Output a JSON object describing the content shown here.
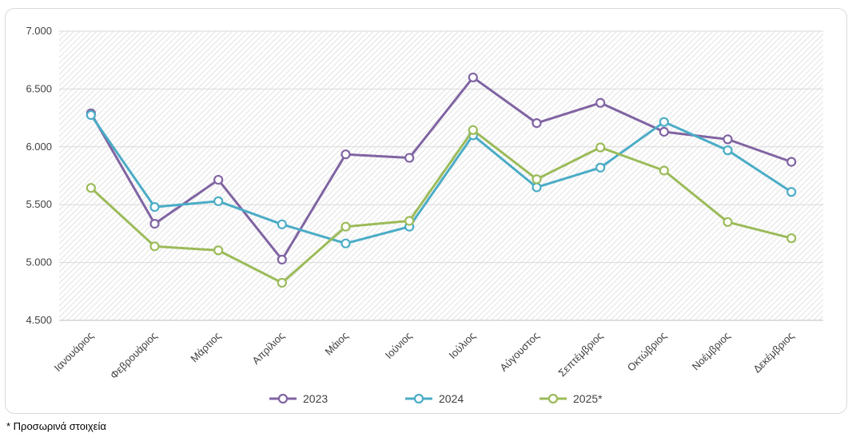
{
  "chart_data": {
    "type": "line",
    "categories": [
      "Ιανουάριος",
      "Φεβρουάριος",
      "Μάρτιος",
      "Απρίλιος",
      "Μάιος",
      "Ιούνιος",
      "Ιούλιος",
      "Αύγουστος",
      "Σεπτέμβριος",
      "Οκτώβριος",
      "Νοέμβριος",
      "Δεκέμβριος"
    ],
    "series": [
      {
        "name": "2023",
        "color": "#8064a2",
        "values": [
          6290,
          5335,
          5715,
          5025,
          5935,
          5905,
          6600,
          6205,
          6380,
          6130,
          6065,
          5870
        ]
      },
      {
        "name": "2024",
        "color": "#4bacc6",
        "values": [
          6275,
          5480,
          5530,
          5330,
          5165,
          5310,
          6100,
          5650,
          5820,
          6215,
          5970,
          5610
        ]
      },
      {
        "name": "2025*",
        "color": "#9bbb59",
        "values": [
          5645,
          5140,
          5105,
          4825,
          5310,
          5360,
          6145,
          5720,
          5995,
          5795,
          5350,
          5210
        ]
      }
    ],
    "ylim": [
      4500,
      7000
    ],
    "yticks": [
      4500,
      5000,
      5500,
      6000,
      6500,
      7000
    ],
    "ytick_labels": [
      "4.500",
      "5.000",
      "5.500",
      "6.000",
      "6.500",
      "7.000"
    ],
    "grid": true,
    "legend_position": "bottom"
  },
  "footnote": "* Προσωρινά στοιχεία"
}
